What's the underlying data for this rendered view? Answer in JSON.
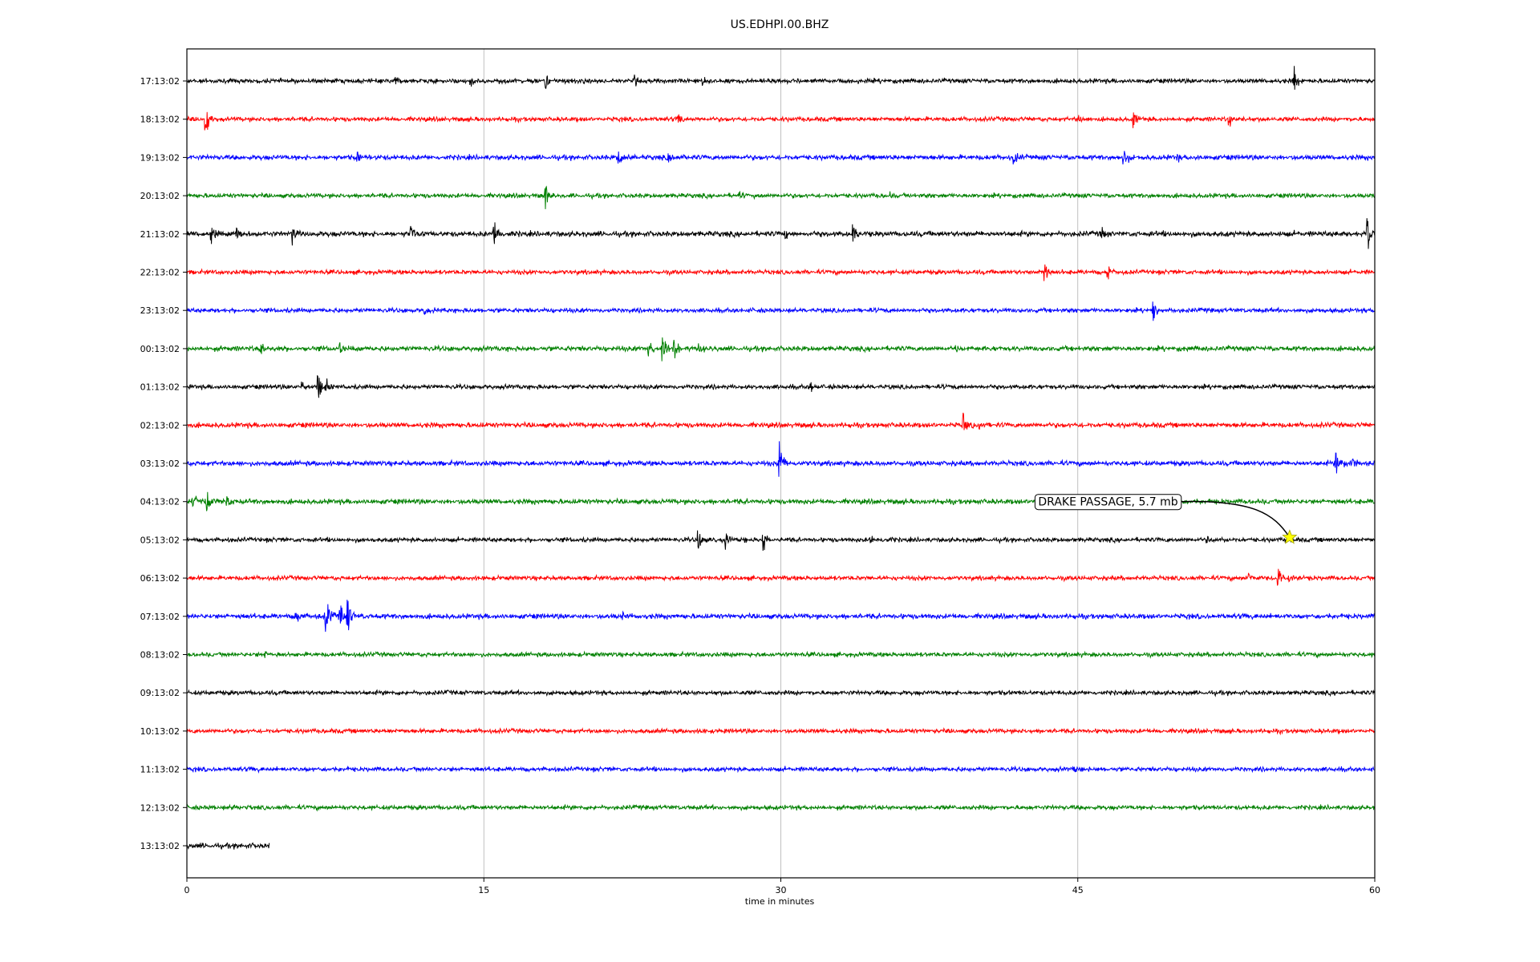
{
  "chart_data": {
    "type": "line",
    "title": "US.EDHPI.00.BHZ",
    "xlabel": "time in minutes",
    "ylabel": "",
    "xlim": [
      0,
      60
    ],
    "x_ticks": [
      "0",
      "15",
      "30",
      "45",
      "60"
    ],
    "x_tick_values": [
      0,
      15,
      30,
      45,
      60
    ],
    "grid": "vertical",
    "legend": "none",
    "trace_colors": [
      "#000000",
      "#ff0000",
      "#0000ff",
      "#008000"
    ],
    "rows": [
      {
        "label": "17:13:02",
        "color": "#000000",
        "noise": 2.5,
        "end_min": 60,
        "events": [
          {
            "t": 10.5,
            "a": 7
          },
          {
            "t": 14.3,
            "a": 8
          },
          {
            "t": 18.1,
            "a": 12
          },
          {
            "t": 22.6,
            "a": 9
          },
          {
            "t": 26.0,
            "a": 6
          },
          {
            "t": 55.9,
            "a": 22
          }
        ]
      },
      {
        "label": "18:13:02",
        "color": "#ff0000",
        "noise": 2.5,
        "end_min": 60,
        "events": [
          {
            "t": 0.9,
            "a": 28
          },
          {
            "t": 24.8,
            "a": 6
          },
          {
            "t": 45.0,
            "a": 7
          },
          {
            "t": 47.8,
            "a": 14
          },
          {
            "t": 52.6,
            "a": 12
          }
        ]
      },
      {
        "label": "19:13:02",
        "color": "#0000ff",
        "noise": 2.8,
        "end_min": 60,
        "events": [
          {
            "t": 8.6,
            "a": 9
          },
          {
            "t": 21.8,
            "a": 14
          },
          {
            "t": 24.3,
            "a": 7
          },
          {
            "t": 41.7,
            "a": 13
          },
          {
            "t": 47.3,
            "a": 16
          },
          {
            "t": 50.0,
            "a": 7
          }
        ]
      },
      {
        "label": "20:13:02",
        "color": "#008000",
        "noise": 2.5,
        "end_min": 60,
        "events": [
          {
            "t": 18.1,
            "a": 20
          },
          {
            "t": 27.8,
            "a": 12
          },
          {
            "t": 35.5,
            "a": 5
          }
        ]
      },
      {
        "label": "21:13:02",
        "color": "#000000",
        "noise": 3.0,
        "end_min": 60,
        "events": [
          {
            "t": 1.2,
            "a": 14
          },
          {
            "t": 2.5,
            "a": 10
          },
          {
            "t": 5.3,
            "a": 16
          },
          {
            "t": 11.3,
            "a": 13
          },
          {
            "t": 15.5,
            "a": 18
          },
          {
            "t": 30.2,
            "a": 7
          },
          {
            "t": 33.6,
            "a": 16
          },
          {
            "t": 46.1,
            "a": 20
          },
          {
            "t": 59.6,
            "a": 26
          }
        ]
      },
      {
        "label": "22:13:02",
        "color": "#ff0000",
        "noise": 2.5,
        "end_min": 60,
        "events": [
          {
            "t": 43.3,
            "a": 18
          },
          {
            "t": 46.5,
            "a": 14
          }
        ]
      },
      {
        "label": "23:13:02",
        "color": "#0000ff",
        "noise": 2.5,
        "end_min": 60,
        "events": [
          {
            "t": 12.0,
            "a": 7
          },
          {
            "t": 48.8,
            "a": 16
          }
        ]
      },
      {
        "label": "00:13:02",
        "color": "#008000",
        "noise": 2.8,
        "end_min": 60,
        "events": [
          {
            "t": 3.7,
            "a": 12
          },
          {
            "t": 7.7,
            "a": 9
          },
          {
            "t": 23.3,
            "a": 18
          },
          {
            "t": 24.0,
            "a": 20
          },
          {
            "t": 24.6,
            "a": 16
          },
          {
            "t": 25.8,
            "a": 10
          },
          {
            "t": 38.8,
            "a": 6
          }
        ]
      },
      {
        "label": "01:13:02",
        "color": "#000000",
        "noise": 2.5,
        "end_min": 60,
        "events": [
          {
            "t": 5.8,
            "a": 10
          },
          {
            "t": 6.6,
            "a": 22
          },
          {
            "t": 7.0,
            "a": 14
          },
          {
            "t": 31.5,
            "a": 7
          }
        ]
      },
      {
        "label": "02:13:02",
        "color": "#ff0000",
        "noise": 2.8,
        "end_min": 60,
        "events": [
          {
            "t": 39.2,
            "a": 18
          },
          {
            "t": 40.0,
            "a": 8
          }
        ]
      },
      {
        "label": "03:13:02",
        "color": "#0000ff",
        "noise": 2.8,
        "end_min": 60,
        "events": [
          {
            "t": 29.9,
            "a": 32
          },
          {
            "t": 58.0,
            "a": 28
          },
          {
            "t": 58.8,
            "a": 10
          }
        ]
      },
      {
        "label": "04:13:02",
        "color": "#008000",
        "noise": 2.8,
        "end_min": 60,
        "events": [
          {
            "t": 0.3,
            "a": 12
          },
          {
            "t": 1.0,
            "a": 18
          },
          {
            "t": 2.0,
            "a": 12
          }
        ]
      },
      {
        "label": "05:13:02",
        "color": "#000000",
        "noise": 2.5,
        "end_min": 60,
        "events": [
          {
            "t": 25.8,
            "a": 14
          },
          {
            "t": 27.2,
            "a": 12
          },
          {
            "t": 29.1,
            "a": 18
          },
          {
            "t": 34.5,
            "a": 7
          },
          {
            "t": 51.5,
            "a": 8
          }
        ]
      },
      {
        "label": "06:13:02",
        "color": "#ff0000",
        "noise": 2.5,
        "end_min": 60,
        "events": [
          {
            "t": 53.6,
            "a": 10
          },
          {
            "t": 55.1,
            "a": 16
          },
          {
            "t": 55.7,
            "a": 9
          }
        ]
      },
      {
        "label": "07:13:02",
        "color": "#0000ff",
        "noise": 2.8,
        "end_min": 60,
        "events": [
          {
            "t": 5.5,
            "a": 14
          },
          {
            "t": 7.0,
            "a": 42
          },
          {
            "t": 7.7,
            "a": 22
          },
          {
            "t": 8.1,
            "a": 26
          },
          {
            "t": 22.0,
            "a": 5
          }
        ]
      },
      {
        "label": "08:13:02",
        "color": "#008000",
        "noise": 2.5,
        "end_min": 60,
        "events": [
          {
            "t": 3.9,
            "a": 5
          }
        ]
      },
      {
        "label": "09:13:02",
        "color": "#000000",
        "noise": 2.5,
        "end_min": 60,
        "events": [
          {
            "t": 13.2,
            "a": 4
          }
        ]
      },
      {
        "label": "10:13:02",
        "color": "#ff0000",
        "noise": 2.5,
        "end_min": 60,
        "events": [
          {
            "t": 25.9,
            "a": 4
          }
        ]
      },
      {
        "label": "11:13:02",
        "color": "#0000ff",
        "noise": 2.5,
        "end_min": 60,
        "events": [
          {
            "t": 44.8,
            "a": 4
          }
        ]
      },
      {
        "label": "12:13:02",
        "color": "#008000",
        "noise": 2.5,
        "end_min": 60,
        "events": [
          {
            "t": 2.3,
            "a": 4
          }
        ]
      },
      {
        "label": "13:13:02",
        "color": "#000000",
        "noise": 3.0,
        "end_min": 4.2,
        "events": []
      }
    ],
    "annotation": {
      "text": "DRAKE PASSAGE, 5.7 mb",
      "row_label": "05:13:02",
      "marker_minute": 55.7,
      "text_minute": 43.0,
      "marker_color": "#ffff00"
    }
  }
}
